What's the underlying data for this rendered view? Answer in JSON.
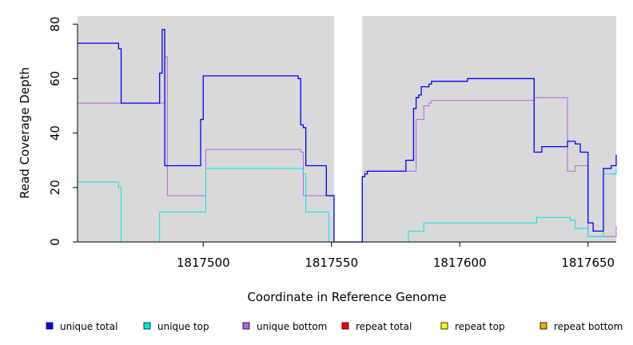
{
  "chart_data": {
    "type": "line",
    "title": "",
    "xlabel": "Coordinate in Reference Genome",
    "ylabel": "Read Coverage Depth",
    "xlim": [
      1817451,
      1817661
    ],
    "ylim": [
      0,
      83
    ],
    "x_ticks": [
      1817500,
      1817550,
      1817600,
      1817650
    ],
    "y_ticks": [
      0,
      20,
      40,
      60,
      80
    ],
    "grid": false,
    "background_color": "#d9d9d9",
    "gap_region": {
      "x_start": 1817551,
      "x_end": 1817562,
      "color": "#ffffff"
    },
    "legend_position": "bottom",
    "series": [
      {
        "name": "unique total",
        "color": "#0000ff",
        "step": true,
        "x": [
          1817451,
          1817467,
          1817468,
          1817483,
          1817484,
          1817485,
          1817486,
          1817499,
          1817500,
          1817501,
          1817537,
          1817538,
          1817539,
          1817540,
          1817548,
          1817551,
          1817562,
          1817563,
          1817564,
          1817579,
          1817582,
          1817583,
          1817584,
          1817585,
          1817588,
          1817589,
          1817603,
          1817629,
          1817632,
          1817642,
          1817645,
          1817647,
          1817650,
          1817652,
          1817656,
          1817659,
          1817661
        ],
        "values": [
          73,
          71,
          51,
          62,
          78,
          28,
          28,
          45,
          61,
          61,
          60,
          43,
          42,
          28,
          17,
          0,
          24,
          25,
          26,
          30,
          49,
          53,
          54,
          57,
          58,
          59,
          60,
          33,
          35,
          37,
          36,
          33,
          7,
          4,
          27,
          28,
          32
        ]
      },
      {
        "name": "unique top",
        "color": "#00e5e5",
        "step": true,
        "x": [
          1817451,
          1817467,
          1817468,
          1817483,
          1817500,
          1817501,
          1817539,
          1817540,
          1817548,
          1817549,
          1817551,
          1817562,
          1817580,
          1817586,
          1817630,
          1817643,
          1817645,
          1817647,
          1817650,
          1817652,
          1817656,
          1817661
        ],
        "values": [
          22,
          20,
          0,
          11,
          11,
          27,
          25,
          11,
          11,
          0,
          0,
          0,
          4,
          7,
          9,
          8,
          5,
          5,
          2,
          2,
          25,
          27
        ]
      },
      {
        "name": "unique bottom",
        "color": "#b266e0",
        "step": true,
        "x": [
          1817451,
          1817485,
          1817486,
          1817500,
          1817501,
          1817537,
          1817538,
          1817539,
          1817548,
          1817551,
          1817562,
          1817563,
          1817581,
          1817583,
          1817586,
          1817588,
          1817589,
          1817603,
          1817629,
          1817642,
          1817645,
          1817647,
          1817650,
          1817652,
          1817660,
          1817661
        ],
        "values": [
          51,
          68,
          17,
          17,
          34,
          34,
          33,
          17,
          17,
          0,
          24,
          26,
          26,
          45,
          50,
          51,
          52,
          52,
          53,
          26,
          28,
          28,
          2,
          2,
          2,
          6
        ]
      },
      {
        "name": "repeat total",
        "color": "#ff0000",
        "step": true,
        "x": [
          1817451,
          1817661
        ],
        "values": [
          0,
          0
        ]
      },
      {
        "name": "repeat top",
        "color": "#ffff00",
        "step": true,
        "x": [
          1817451,
          1817661
        ],
        "values": [
          0,
          0
        ]
      },
      {
        "name": "repeat bottom",
        "color": "#ffa500",
        "step": true,
        "x": [
          1817451,
          1817661
        ],
        "values": [
          0,
          0
        ]
      }
    ]
  }
}
